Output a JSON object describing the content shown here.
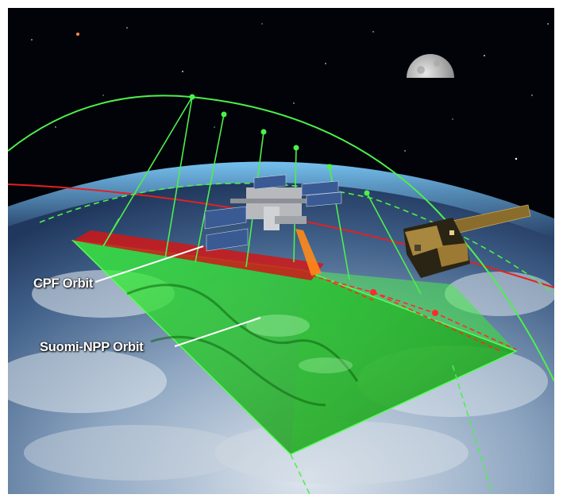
{
  "labels": {
    "cpf_orbit": "CPF Orbit",
    "suomi_npp_orbit": "Suomi-NPP Orbit"
  },
  "colors": {
    "space": "#020308",
    "npp_swath": "#3cff3c",
    "npp_orbit_line": "#4cf04c",
    "cpf_orbit_line": "#e62020",
    "cpf_swath": "#d01818",
    "iss_beam": "#ff8a1a",
    "callout_text": "#ffffff"
  },
  "icons": {
    "earth": "earth-illustration",
    "moon": "moon-illustration",
    "iss": "space-station-illustration",
    "satellite": "suomi-npp-satellite-illustration"
  }
}
